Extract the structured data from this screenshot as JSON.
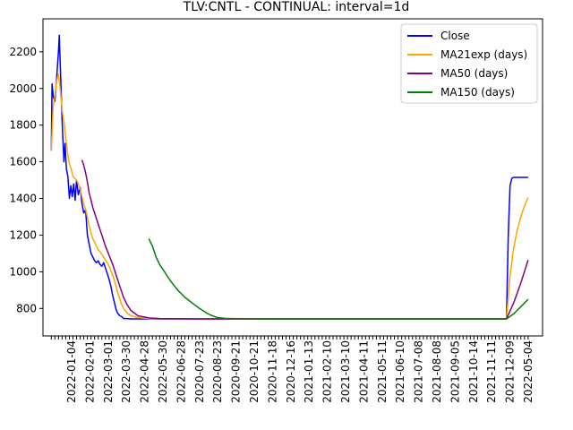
{
  "chart_data": {
    "type": "line",
    "title": "TLV:CNTL - CONTINUAL: interval=1d",
    "xlabel": "",
    "ylabel": "",
    "ylim": [
      650,
      2380
    ],
    "yticks": [
      800,
      1000,
      1200,
      1400,
      1600,
      1800,
      2000,
      2200
    ],
    "xticks": [
      "2022-01-04",
      "2022-02-01",
      "2022-03-01",
      "2022-03-30",
      "2022-04-28",
      "2022-05-30",
      "2022-06-28",
      "2020-07-23",
      "2020-08-23",
      "2020-09-21",
      "2020-10-21",
      "2020-11-18",
      "2020-12-16",
      "2021-01-13",
      "2021-02-10",
      "2021-03-10",
      "2021-04-11",
      "2021-05-11",
      "2021-06-10",
      "2021-07-08",
      "2021-08-08",
      "2021-09-05",
      "2021-10-14",
      "2021-11-11",
      "2021-12-09",
      "2022-05-04"
    ],
    "legend_position": "upper right",
    "grid": false,
    "series": [
      {
        "name": "Close",
        "color": "#0000ff",
        "points": [
          [
            0,
            1660
          ],
          [
            0.2,
            2025
          ],
          [
            0.6,
            1950
          ],
          [
            1.0,
            1930
          ],
          [
            1.5,
            2060
          ],
          [
            2.0,
            2200
          ],
          [
            2.2,
            2290
          ],
          [
            2.6,
            2060
          ],
          [
            3.0,
            1820
          ],
          [
            3.5,
            1600
          ],
          [
            3.8,
            1700
          ],
          [
            4.2,
            1560
          ],
          [
            4.6,
            1520
          ],
          [
            5.0,
            1400
          ],
          [
            5.4,
            1470
          ],
          [
            5.8,
            1410
          ],
          [
            6.2,
            1480
          ],
          [
            6.6,
            1390
          ],
          [
            7.0,
            1500
          ],
          [
            7.5,
            1420
          ],
          [
            8.0,
            1460
          ],
          [
            8.5,
            1370
          ],
          [
            9.0,
            1320
          ],
          [
            9.5,
            1340
          ],
          [
            10.0,
            1200
          ],
          [
            10.5,
            1150
          ],
          [
            11.0,
            1100
          ],
          [
            11.5,
            1080
          ],
          [
            12.0,
            1060
          ],
          [
            12.5,
            1050
          ],
          [
            13.0,
            1060
          ],
          [
            13.5,
            1040
          ],
          [
            14.0,
            1030
          ],
          [
            14.5,
            1050
          ],
          [
            15.0,
            1020
          ],
          [
            15.5,
            990
          ],
          [
            16.0,
            960
          ],
          [
            16.5,
            920
          ],
          [
            17.0,
            870
          ],
          [
            17.5,
            830
          ],
          [
            18.0,
            790
          ],
          [
            18.5,
            770
          ],
          [
            19.0,
            760
          ],
          [
            19.5,
            755
          ],
          [
            20.0,
            745
          ],
          [
            21.0,
            745
          ],
          [
            22.0,
            743
          ],
          [
            25.0,
            743
          ],
          [
            30.0,
            743
          ],
          [
            40.0,
            743
          ],
          [
            50.0,
            743
          ],
          [
            60.0,
            743
          ],
          [
            70.0,
            743
          ],
          [
            80.0,
            743
          ],
          [
            90.0,
            743
          ],
          [
            100.0,
            743
          ],
          [
            110.0,
            743
          ],
          [
            120.0,
            743
          ],
          [
            126.0,
            743
          ],
          [
            126.5,
            1200
          ],
          [
            127.0,
            1470
          ],
          [
            127.5,
            1510
          ],
          [
            128.0,
            1515
          ],
          [
            132.0,
            1515
          ]
        ]
      },
      {
        "name": "MA21exp (days)",
        "color": "#ffa500",
        "points": [
          [
            0,
            1660
          ],
          [
            0.5,
            1900
          ],
          [
            1.0,
            1960
          ],
          [
            1.5,
            2040
          ],
          [
            2.0,
            2080
          ],
          [
            2.5,
            1990
          ],
          [
            3.0,
            1880
          ],
          [
            3.5,
            1820
          ],
          [
            4.0,
            1730
          ],
          [
            4.5,
            1650
          ],
          [
            5.0,
            1590
          ],
          [
            5.5,
            1560
          ],
          [
            6.0,
            1520
          ],
          [
            6.5,
            1510
          ],
          [
            7.0,
            1500
          ],
          [
            7.5,
            1480
          ],
          [
            8.0,
            1450
          ],
          [
            8.5,
            1410
          ],
          [
            9.0,
            1370
          ],
          [
            9.5,
            1340
          ],
          [
            10.0,
            1300
          ],
          [
            10.5,
            1250
          ],
          [
            11.0,
            1210
          ],
          [
            11.5,
            1180
          ],
          [
            12.0,
            1160
          ],
          [
            12.5,
            1140
          ],
          [
            13.0,
            1120
          ],
          [
            13.5,
            1110
          ],
          [
            14.0,
            1095
          ],
          [
            14.5,
            1080
          ],
          [
            15.0,
            1065
          ],
          [
            15.5,
            1050
          ],
          [
            16.0,
            1030
          ],
          [
            16.5,
            1005
          ],
          [
            17.0,
            980
          ],
          [
            17.5,
            950
          ],
          [
            18.0,
            915
          ],
          [
            18.5,
            880
          ],
          [
            19.0,
            850
          ],
          [
            19.5,
            820
          ],
          [
            20.0,
            800
          ],
          [
            21.0,
            775
          ],
          [
            22.0,
            760
          ],
          [
            24.0,
            750
          ],
          [
            27.0,
            745
          ],
          [
            40.0,
            743
          ],
          [
            60.0,
            743
          ],
          [
            80.0,
            743
          ],
          [
            100.0,
            743
          ],
          [
            126.0,
            743
          ],
          [
            127.0,
            980
          ],
          [
            128.0,
            1130
          ],
          [
            129.0,
            1230
          ],
          [
            130.0,
            1300
          ],
          [
            131.0,
            1360
          ],
          [
            132.0,
            1405
          ]
        ]
      },
      {
        "name": "MA50 (days)",
        "color": "#800080",
        "points": [
          [
            8.5,
            1610
          ],
          [
            9.0,
            1580
          ],
          [
            9.5,
            1540
          ],
          [
            10.0,
            1490
          ],
          [
            10.5,
            1430
          ],
          [
            11.0,
            1390
          ],
          [
            11.5,
            1350
          ],
          [
            12.0,
            1320
          ],
          [
            12.5,
            1290
          ],
          [
            13.0,
            1260
          ],
          [
            13.5,
            1230
          ],
          [
            14.0,
            1200
          ],
          [
            14.5,
            1170
          ],
          [
            15.0,
            1140
          ],
          [
            15.5,
            1115
          ],
          [
            16.0,
            1090
          ],
          [
            16.5,
            1065
          ],
          [
            17.0,
            1040
          ],
          [
            17.5,
            1010
          ],
          [
            18.0,
            980
          ],
          [
            18.5,
            950
          ],
          [
            19.0,
            920
          ],
          [
            19.5,
            890
          ],
          [
            20.0,
            860
          ],
          [
            21.0,
            820
          ],
          [
            22.0,
            790
          ],
          [
            24.0,
            760
          ],
          [
            27.0,
            748
          ],
          [
            30.0,
            745
          ],
          [
            40.0,
            743
          ],
          [
            60.0,
            743
          ],
          [
            80.0,
            743
          ],
          [
            100.0,
            743
          ],
          [
            126.0,
            743
          ],
          [
            128.0,
            830
          ],
          [
            130.0,
            940
          ],
          [
            132.0,
            1065
          ]
        ]
      },
      {
        "name": "MA150 (days)",
        "color": "#008000",
        "points": [
          [
            27.0,
            1180
          ],
          [
            28.0,
            1140
          ],
          [
            29.0,
            1080
          ],
          [
            30.0,
            1040
          ],
          [
            31.0,
            1010
          ],
          [
            32.0,
            980
          ],
          [
            33.0,
            950
          ],
          [
            34.0,
            925
          ],
          [
            35.0,
            900
          ],
          [
            36.0,
            880
          ],
          [
            37.0,
            860
          ],
          [
            38.0,
            845
          ],
          [
            39.0,
            830
          ],
          [
            40.0,
            815
          ],
          [
            41.0,
            800
          ],
          [
            42.0,
            788
          ],
          [
            43.0,
            775
          ],
          [
            44.0,
            765
          ],
          [
            45.0,
            757
          ],
          [
            46.0,
            750
          ],
          [
            48.0,
            746
          ],
          [
            50.0,
            745
          ],
          [
            60.0,
            743
          ],
          [
            80.0,
            743
          ],
          [
            100.0,
            743
          ],
          [
            126.0,
            743
          ],
          [
            128.0,
            770
          ],
          [
            130.0,
            810
          ],
          [
            132.0,
            850
          ]
        ]
      }
    ],
    "xrange": [
      -2.3,
      136
    ]
  }
}
